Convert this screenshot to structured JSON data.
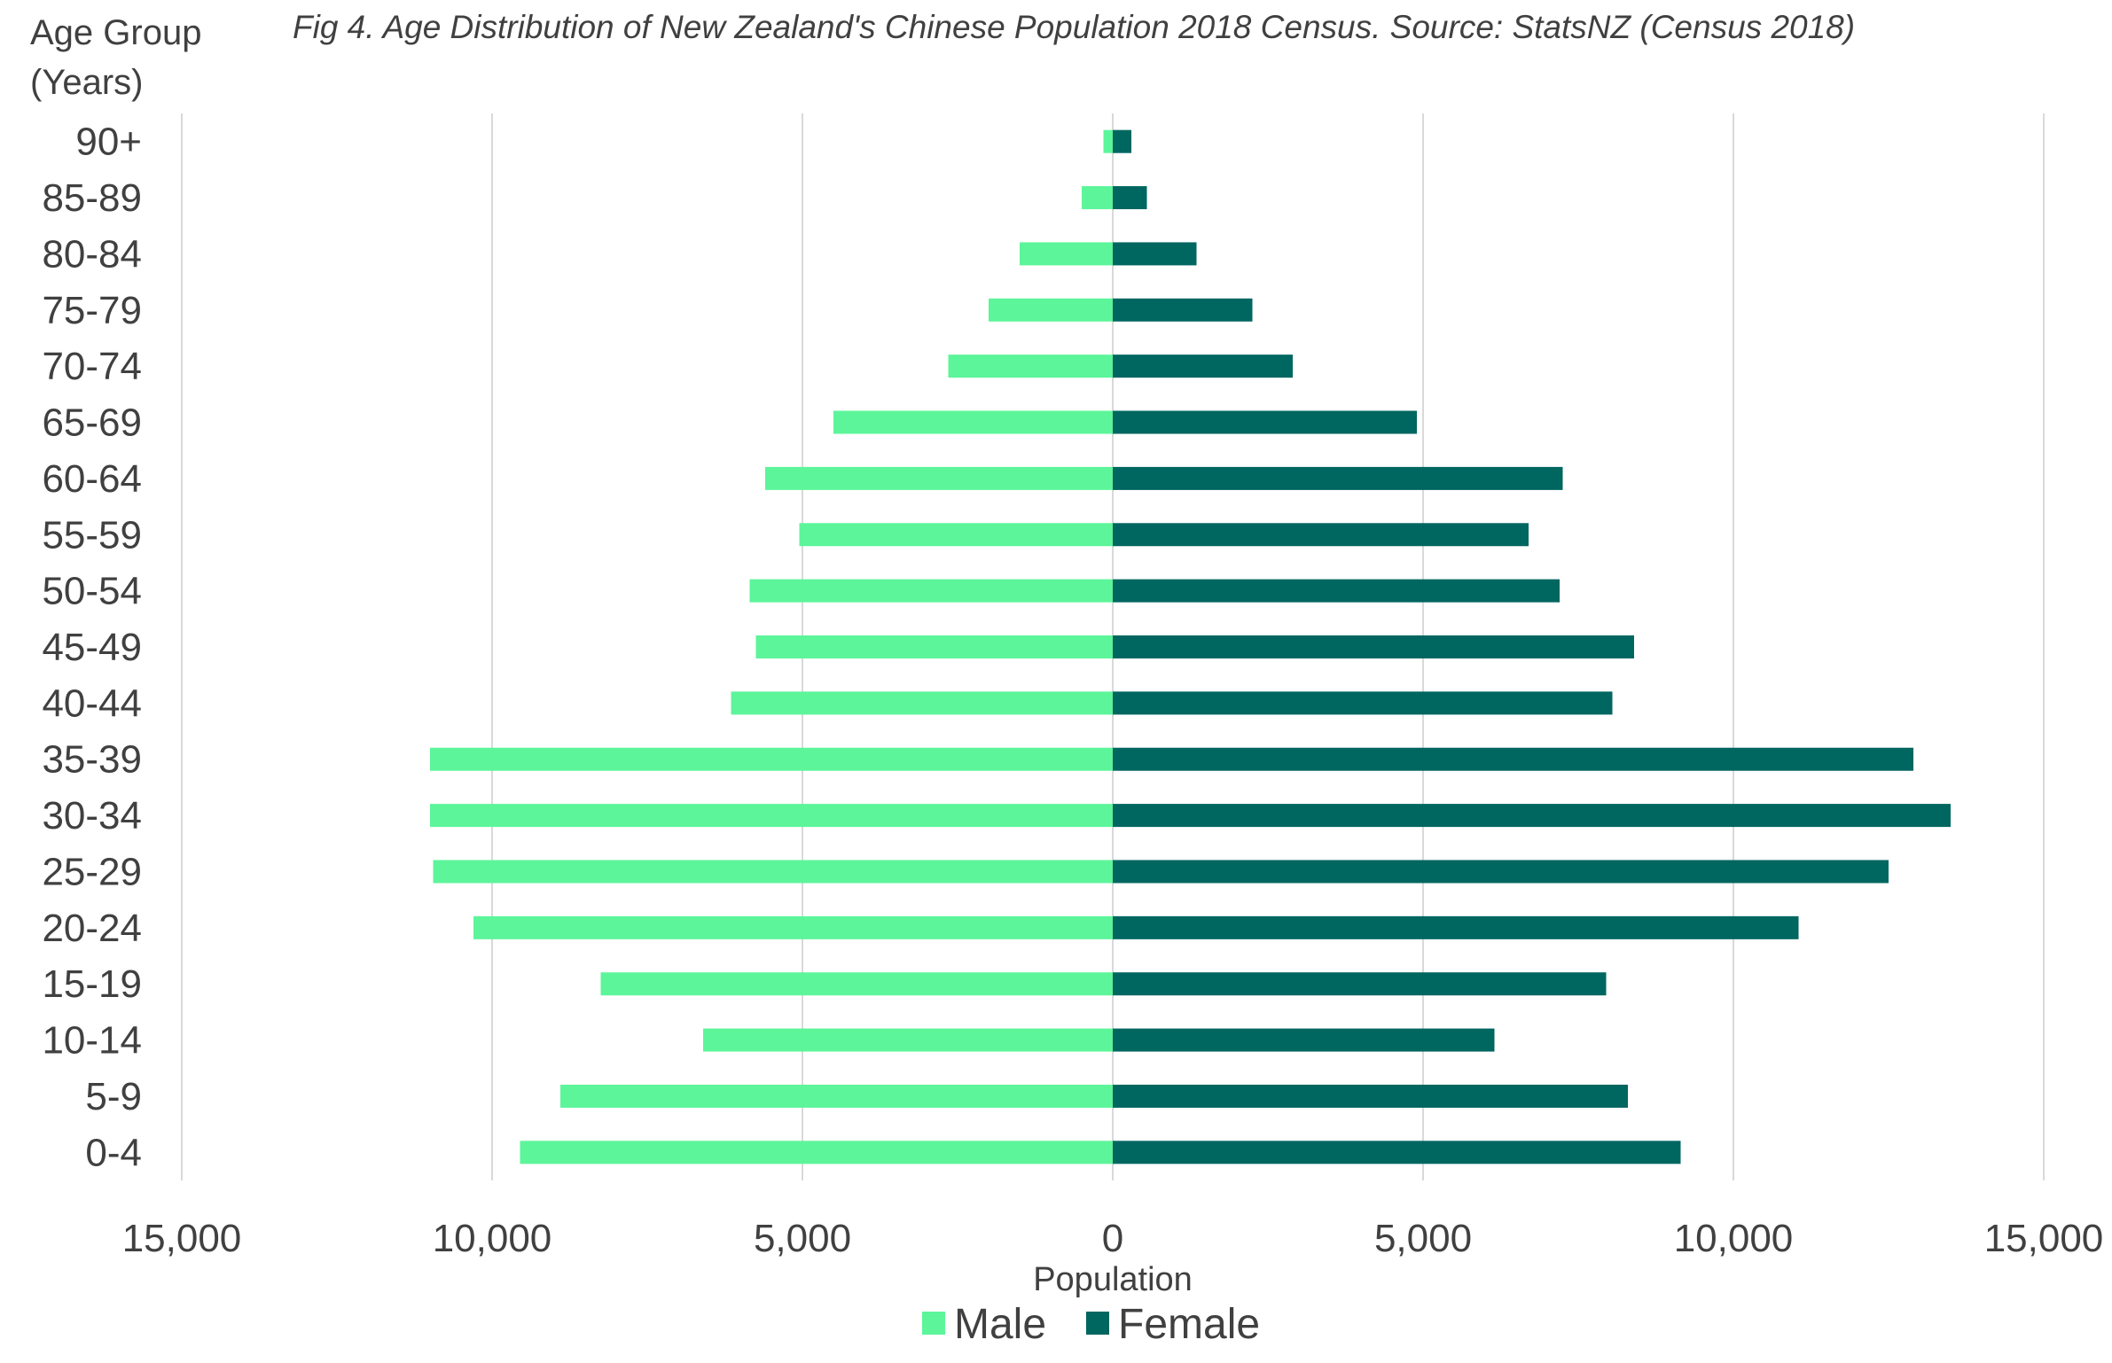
{
  "chart_data": {
    "type": "bar",
    "orientation": "horizontal",
    "style": "population-pyramid",
    "title": "Fig 4. Age Distribution of New Zealand's Chinese Population 2018 Census. Source: StatsNZ (Census 2018)",
    "ylabel_line1": "Age Group",
    "ylabel_line2": "(Years)",
    "xlabel": "Population",
    "xlim": [
      -15000,
      15000
    ],
    "xticks": [
      -15000,
      -10000,
      -5000,
      0,
      5000,
      10000,
      15000
    ],
    "xtick_labels": [
      "15,000",
      "10,000",
      "5,000",
      "0",
      "5,000",
      "10,000",
      "15,000"
    ],
    "grid": true,
    "legend_position": "bottom",
    "categories": [
      "90+",
      "85-89",
      "80-84",
      "75-79",
      "70-74",
      "65-69",
      "60-64",
      "55-59",
      "50-54",
      "45-49",
      "40-44",
      "35-39",
      "30-34",
      "25-29",
      "20-24",
      "15-19",
      "10-14",
      "5-9",
      "0-4"
    ],
    "series": [
      {
        "name": "Male",
        "color": "#5cf59a",
        "values": [
          150,
          500,
          1500,
          2000,
          2650,
          4500,
          5600,
          5050,
          5850,
          5750,
          6150,
          11000,
          11000,
          10950,
          10300,
          8250,
          6600,
          8900,
          9550
        ]
      },
      {
        "name": "Female",
        "color": "#006660",
        "values": [
          300,
          550,
          1350,
          2250,
          2900,
          4900,
          7250,
          6700,
          7200,
          8400,
          8050,
          12900,
          13500,
          12500,
          11050,
          7950,
          6150,
          8300,
          9150
        ]
      }
    ]
  }
}
